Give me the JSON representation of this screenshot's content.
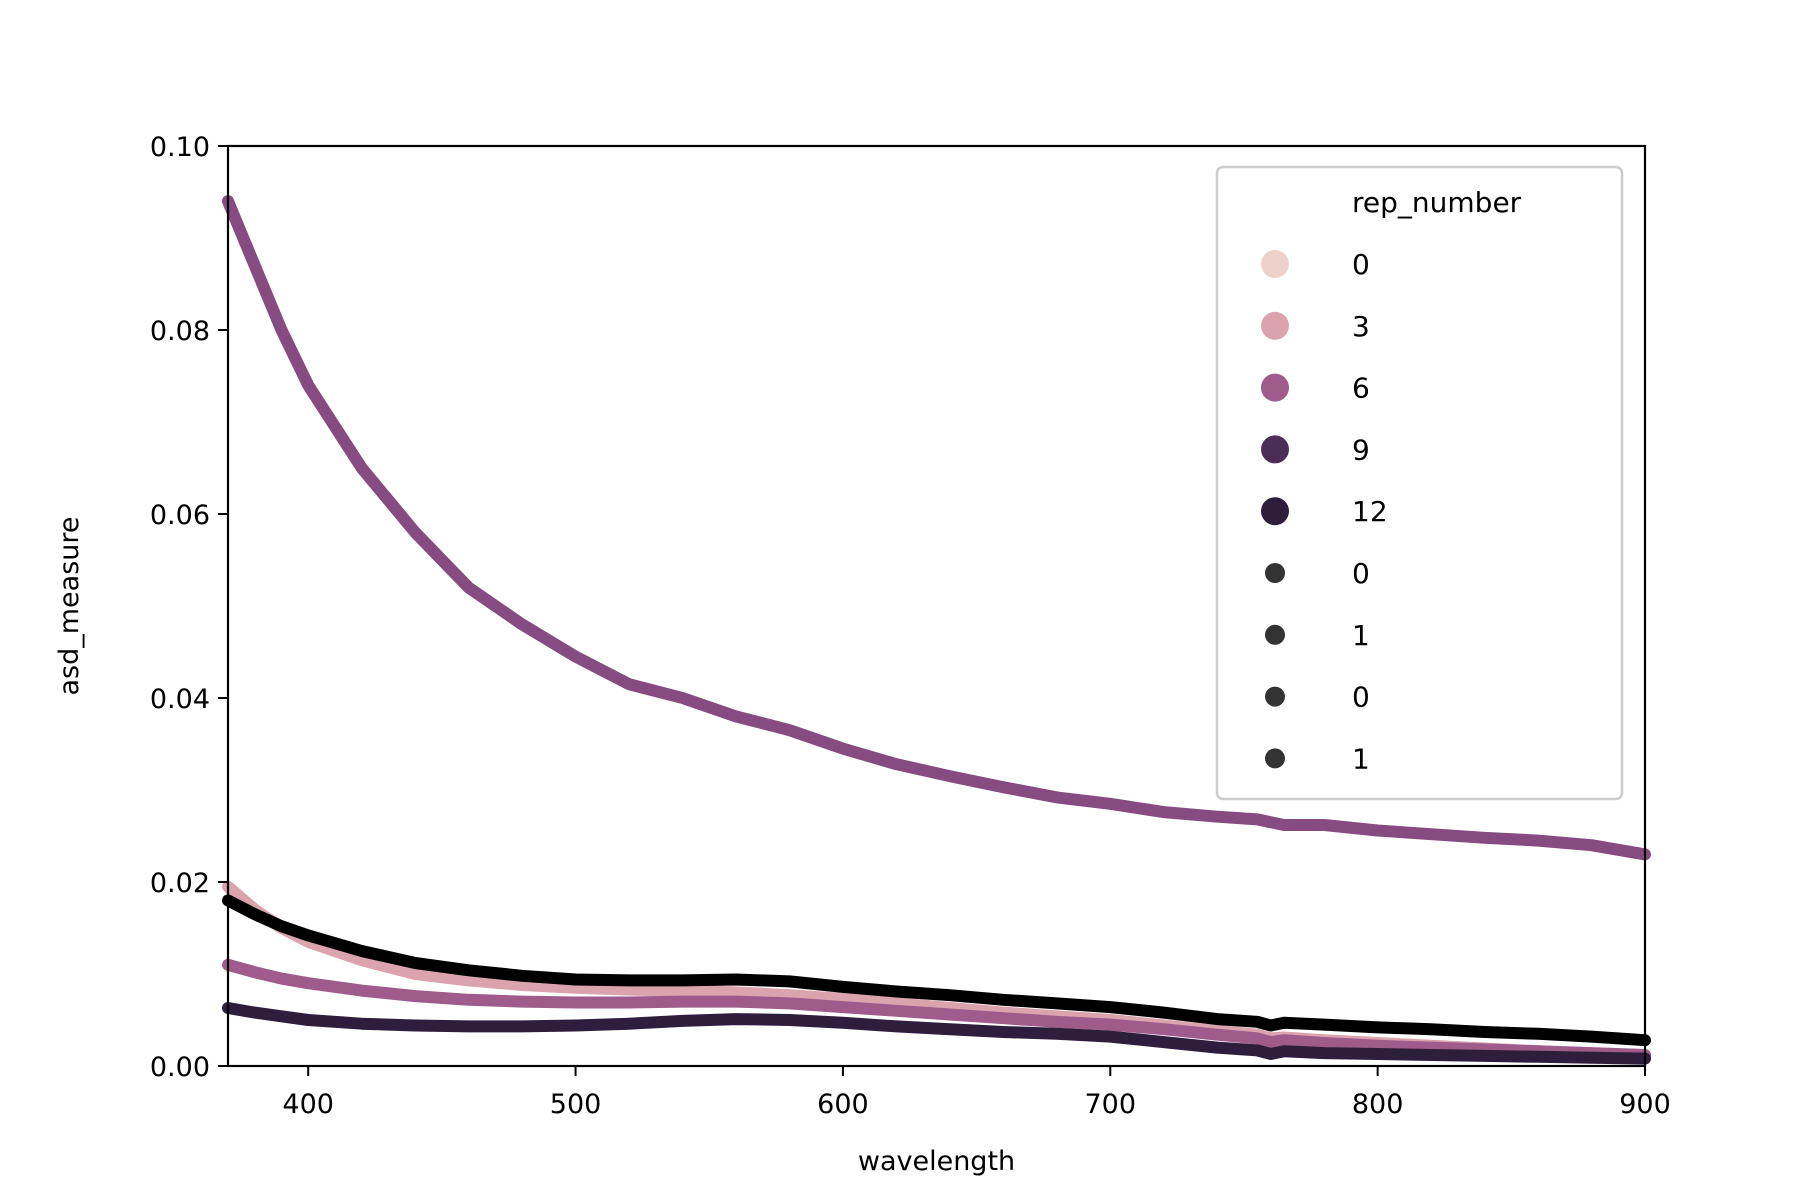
{
  "chart_data": {
    "type": "scatter",
    "title": "",
    "xlabel": "wavelength",
    "ylabel": "asd_measure",
    "xlim": [
      370,
      900
    ],
    "ylim": [
      0,
      0.1
    ],
    "x_ticks": [
      "400",
      "500",
      "600",
      "700",
      "800",
      "900"
    ],
    "y_ticks": [
      "0.00",
      "0.02",
      "0.04",
      "0.06",
      "0.08",
      "0.10"
    ],
    "grid": false,
    "legend": {
      "title": "rep_number",
      "placement": "top-right",
      "hue_entries": [
        {
          "label": "0",
          "color": "#edd1cb"
        },
        {
          "label": "3",
          "color": "#dba3ae"
        },
        {
          "label": "6",
          "color": "#9e5b8c"
        },
        {
          "label": "9",
          "color": "#4b2d58"
        },
        {
          "label": "12",
          "color": "#2d1e3e"
        }
      ],
      "size_entries": [
        {
          "label": "0",
          "color": "#333333"
        },
        {
          "label": "1",
          "color": "#333333"
        },
        {
          "label": "0",
          "color": "#333333"
        },
        {
          "label": "1",
          "color": "#333333"
        }
      ]
    },
    "x": [
      370,
      380,
      390,
      400,
      420,
      440,
      460,
      480,
      500,
      520,
      540,
      560,
      580,
      600,
      620,
      640,
      660,
      680,
      700,
      720,
      740,
      755,
      760,
      765,
      780,
      800,
      820,
      840,
      860,
      880,
      900
    ],
    "series": [
      {
        "color": "#864b80",
        "values": [
          0.094,
          0.087,
          0.08,
          0.074,
          0.065,
          0.058,
          0.052,
          0.048,
          0.0445,
          0.0415,
          0.04,
          0.038,
          0.0365,
          0.0345,
          0.0328,
          0.0315,
          0.0303,
          0.0292,
          0.0285,
          0.0276,
          0.0271,
          0.0268,
          0.0265,
          0.0262,
          0.0262,
          0.0256,
          0.0252,
          0.0248,
          0.0245,
          0.024,
          0.023
        ]
      },
      {
        "color": "#dba3ae",
        "values": [
          0.0195,
          0.017,
          0.015,
          0.0135,
          0.0115,
          0.01,
          0.0093,
          0.0088,
          0.0085,
          0.0083,
          0.0082,
          0.008,
          0.0077,
          0.0073,
          0.0068,
          0.0063,
          0.0058,
          0.0054,
          0.005,
          0.0044,
          0.0038,
          0.0034,
          0.003,
          0.0031,
          0.0028,
          0.0025,
          0.0022,
          0.0019,
          0.0016,
          0.0013,
          0.001
        ]
      },
      {
        "color": "#9e5b8c",
        "values": [
          0.011,
          0.0102,
          0.0095,
          0.009,
          0.0082,
          0.0076,
          0.0072,
          0.007,
          0.0069,
          0.0069,
          0.007,
          0.007,
          0.0068,
          0.0064,
          0.006,
          0.0056,
          0.0052,
          0.0048,
          0.0045,
          0.004,
          0.0034,
          0.003,
          0.0026,
          0.0028,
          0.0025,
          0.0022,
          0.002,
          0.0018,
          0.0016,
          0.0014,
          0.0012
        ]
      },
      {
        "color": "#2d1e3e",
        "values": [
          0.0063,
          0.0058,
          0.0054,
          0.005,
          0.0046,
          0.0044,
          0.0043,
          0.0043,
          0.0044,
          0.0046,
          0.0049,
          0.0051,
          0.005,
          0.0047,
          0.0043,
          0.004,
          0.0037,
          0.0035,
          0.0032,
          0.0026,
          0.002,
          0.0017,
          0.0013,
          0.0016,
          0.0014,
          0.0013,
          0.0012,
          0.0011,
          0.001,
          0.0009,
          0.0008
        ]
      },
      {
        "color": "#000000",
        "values": [
          0.018,
          0.0165,
          0.0152,
          0.0142,
          0.0125,
          0.0112,
          0.0104,
          0.0098,
          0.0094,
          0.0093,
          0.0093,
          0.0094,
          0.0092,
          0.0086,
          0.0081,
          0.0077,
          0.0072,
          0.0068,
          0.0064,
          0.0058,
          0.0051,
          0.0048,
          0.0044,
          0.0047,
          0.0045,
          0.0042,
          0.004,
          0.0037,
          0.0035,
          0.0032,
          0.0028
        ]
      }
    ]
  }
}
